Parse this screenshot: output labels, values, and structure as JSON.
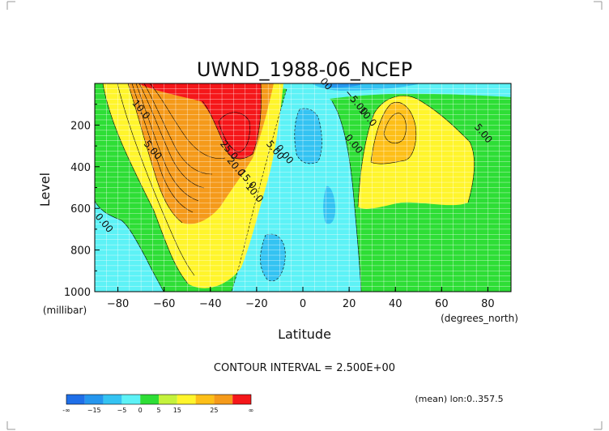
{
  "chart_data": {
    "type": "contour",
    "title": "UWND_1988-06_NCEP",
    "xlabel": "Latitude",
    "ylabel": "Level",
    "x_unit": "(degrees_north)",
    "y_unit": "(millibar)",
    "xlim": [
      -90,
      90
    ],
    "ylim": [
      1000,
      0
    ],
    "x_ticks": [
      -80,
      -60,
      -40,
      -20,
      0,
      20,
      40,
      60,
      80
    ],
    "x_tick_labels": [
      "−80",
      "−60",
      "−40",
      "−20",
      "0",
      "20",
      "40",
      "60",
      "80"
    ],
    "y_ticks": [
      200,
      400,
      600,
      800,
      1000
    ],
    "y_tick_labels": [
      "200",
      "400",
      "600",
      "800",
      "1000"
    ],
    "grid": true,
    "contour_interval_label": "CONTOUR INTERVAL = 2.500E+00",
    "averaging_note": "(mean) lon:0..357.5",
    "colorbar": {
      "levels": [
        -20,
        -15,
        -10,
        -5,
        0,
        5,
        10,
        15,
        20,
        25,
        30
      ],
      "tick_labels": [
        "-∞",
        "−15",
        "−5",
        "0",
        "5",
        "15",
        "25",
        "∞"
      ],
      "colors": [
        "#1f6fe8",
        "#2596ee",
        "#34c3f2",
        "#5df2f6",
        "#2ede36",
        "#c4f23c",
        "#fff52c",
        "#fdbf18",
        "#f59a1a",
        "#f5171a"
      ]
    },
    "contour_labels": [
      {
        "text": "10.0",
        "x": -71,
        "y": 135
      },
      {
        "text": "5.00",
        "x": -66,
        "y": 330
      },
      {
        "text": "25.0",
        "x": -33,
        "y": 330
      },
      {
        "text": "20.0",
        "x": -30,
        "y": 410
      },
      {
        "text": "15.0",
        "x": -25,
        "y": 470
      },
      {
        "text": "10.0",
        "x": -22,
        "y": 535
      },
      {
        "text": "5.00",
        "x": -13,
        "y": 330
      },
      {
        "text": "0.00",
        "x": -9,
        "y": 350
      },
      {
        "text": "−5.00",
        "x": 22,
        "y": 100
      },
      {
        "text": "10.0",
        "x": 27,
        "y": 170
      },
      {
        "text": "0.00",
        "x": 21,
        "y": 300
      },
      {
        "text": "5.00",
        "x": 77,
        "y": 250
      },
      {
        "text": "0.00",
        "x": -87,
        "y": 680
      },
      {
        "text": "00",
        "x": 9,
        "y": 12
      }
    ],
    "extrema": [
      {
        "type": "max",
        "x": -30,
        "y": 190,
        "value": 30
      },
      {
        "type": "max",
        "x": 38,
        "y": 190,
        "value": 17.5
      },
      {
        "type": "min",
        "x": -5,
        "y": 200,
        "value": -7
      }
    ]
  }
}
